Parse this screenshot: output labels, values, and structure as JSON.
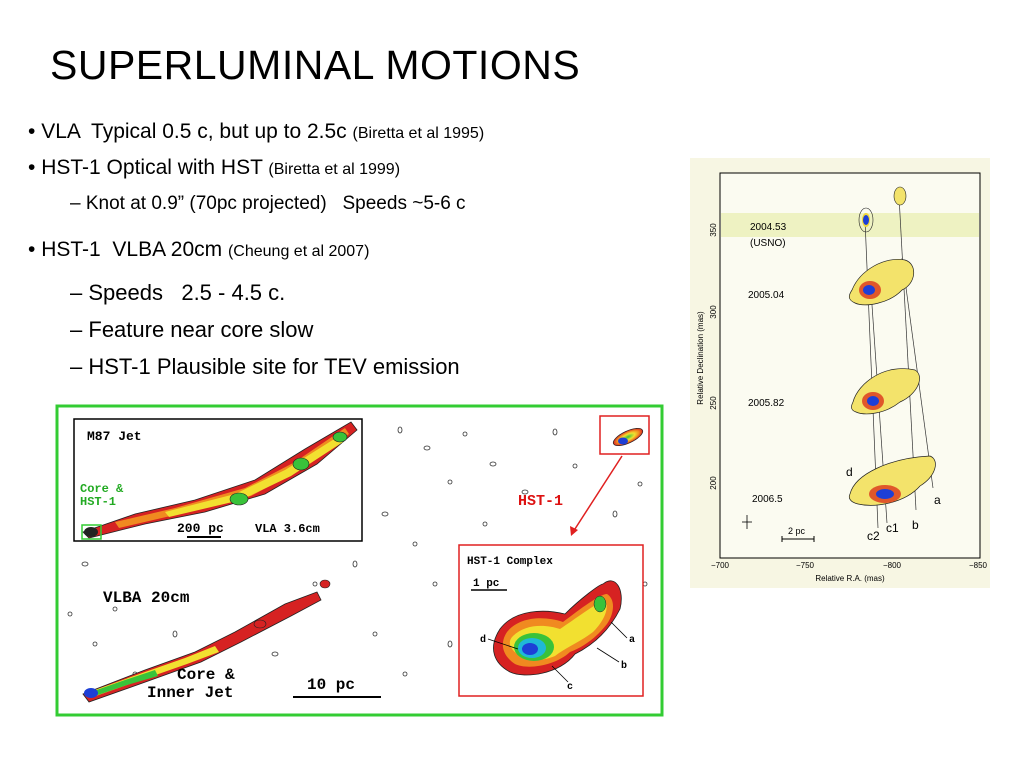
{
  "slide": {
    "title": "SUPERLUMINAL MOTIONS",
    "bullets": [
      {
        "marker": "•",
        "main": "VLA  Typical 0.5 c, but up to 2.5c",
        "ref": "(Biretta et al 1995)"
      },
      {
        "marker": "•",
        "main": "HST-1 Optical with HST",
        "ref": "(Biretta et al 1999)"
      },
      {
        "marker": "–",
        "main": "Knot at 0.9” (70pc projected)   Speeds ~5-6 c"
      },
      {
        "marker": "•",
        "main": "HST-1  VLBA 20cm",
        "ref": "(Cheung et al 2007)"
      },
      {
        "marker": "–",
        "main": "Speeds   2.5 - 4.5 c."
      },
      {
        "marker": "–",
        "main": "Feature near core slow"
      },
      {
        "marker": "–",
        "main": "HST-1 Plausible site for TEV emission"
      }
    ]
  },
  "left_figure": {
    "inset_m87": {
      "title": "M87 Jet",
      "core_label_1": "Core &",
      "core_label_2": "HST-1",
      "scale": "200 pc",
      "band": "VLA 3.6cm"
    },
    "vlba_label": "VLBA 20cm",
    "core_label_1": "Core &",
    "core_label_2": "Inner Jet",
    "scale": "10 pc",
    "hst1_arrow_label": "HST-1",
    "hst1_complex": {
      "title": "HST-1 Complex",
      "scale": "1 pc",
      "labels": [
        "d",
        "a",
        "b",
        "c"
      ]
    },
    "colors": {
      "frame": "#33cc33",
      "red_box": "#e02020",
      "hst1_text": "#dd1111"
    }
  },
  "right_figure": {
    "epochs": [
      "2004.53",
      "(USNO)",
      "2005.04",
      "2005.82",
      "2006.5"
    ],
    "y_ticks": [
      "350",
      "300",
      "250",
      "200"
    ],
    "x_ticks": [
      "−700",
      "−750",
      "−800",
      "−850"
    ],
    "y_label": "Relative Declination (mas)",
    "x_label": "Relative R.A. (mas)",
    "scale": "2 pc",
    "components": [
      "d",
      "a",
      "b",
      "c1",
      "c2"
    ]
  }
}
